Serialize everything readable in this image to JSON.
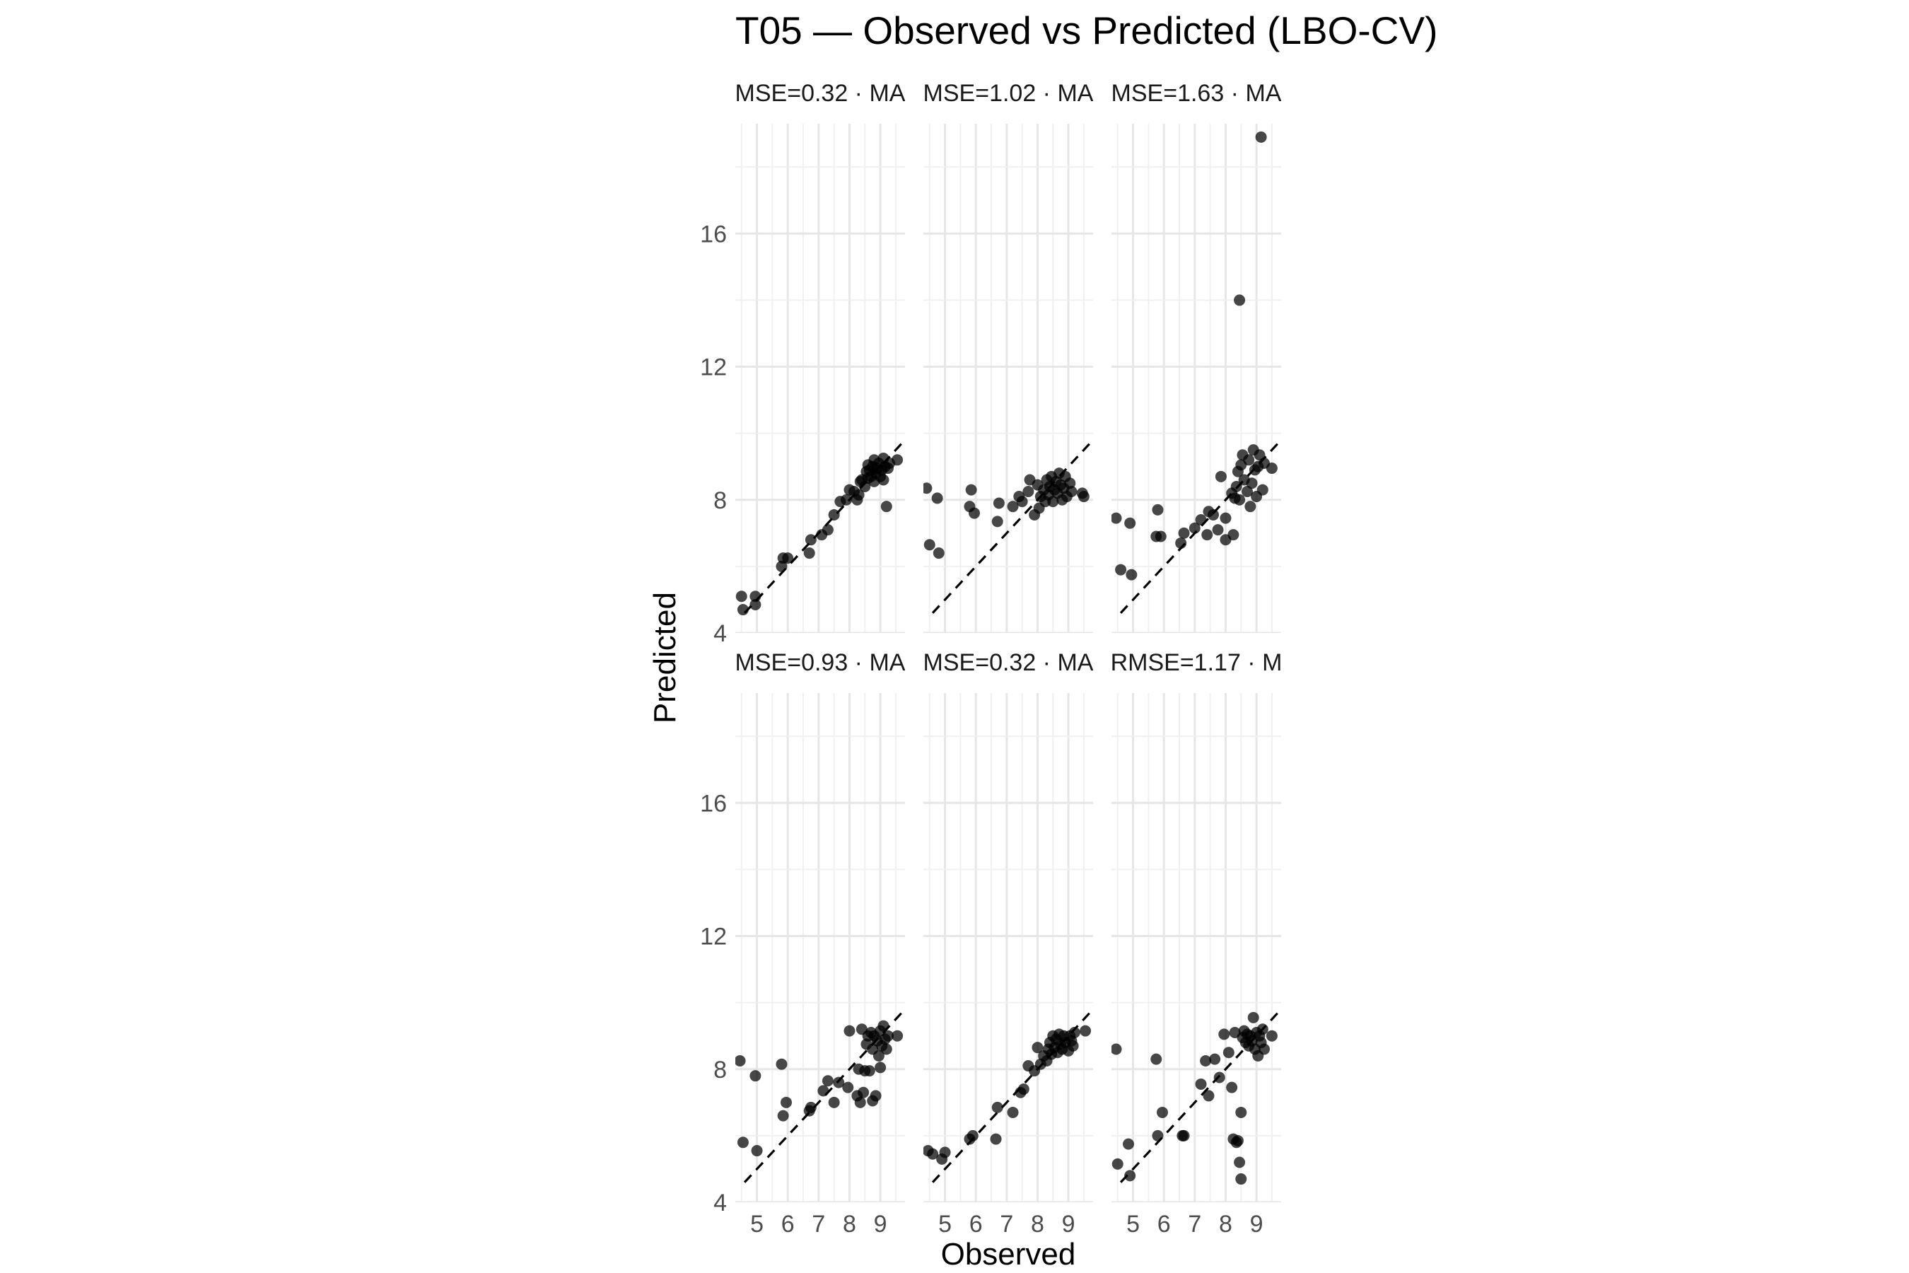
{
  "chart_data": {
    "type": "scatter",
    "title": "T05 — Observed vs Predicted (LBO-CV)",
    "xlabel": "Observed",
    "ylabel": "Predicted",
    "xlim": [
      4.3,
      9.8
    ],
    "ylim": [
      4,
      19.3
    ],
    "x_ticks": [
      "5",
      "6",
      "7",
      "8",
      "9"
    ],
    "y_ticks": [
      "4",
      "8",
      "12",
      "16"
    ],
    "grid": true,
    "reference_line": "y = x (dashed)",
    "panels": [
      {
        "label": "MSE=0.32 · MA",
        "points": [
          [
            4.5,
            5.1
          ],
          [
            4.55,
            4.7
          ],
          [
            4.95,
            4.85
          ],
          [
            4.95,
            5.1
          ],
          [
            5.8,
            6.0
          ],
          [
            5.85,
            6.25
          ],
          [
            6.0,
            6.25
          ],
          [
            6.7,
            6.4
          ],
          [
            6.75,
            6.8
          ],
          [
            7.1,
            6.95
          ],
          [
            7.3,
            7.1
          ],
          [
            7.5,
            7.55
          ],
          [
            7.7,
            7.95
          ],
          [
            7.9,
            8.0
          ],
          [
            8.0,
            8.3
          ],
          [
            8.15,
            8.25
          ],
          [
            8.25,
            8.0
          ],
          [
            8.3,
            8.15
          ],
          [
            8.35,
            8.55
          ],
          [
            8.4,
            8.6
          ],
          [
            8.5,
            8.4
          ],
          [
            8.55,
            8.85
          ],
          [
            8.6,
            8.65
          ],
          [
            8.6,
            9.05
          ],
          [
            8.65,
            8.9
          ],
          [
            8.7,
            8.7
          ],
          [
            8.75,
            9.0
          ],
          [
            8.8,
            8.55
          ],
          [
            8.8,
            9.2
          ],
          [
            8.85,
            8.8
          ],
          [
            8.9,
            8.95
          ],
          [
            8.95,
            9.1
          ],
          [
            9.0,
            8.7
          ],
          [
            9.05,
            8.9
          ],
          [
            9.1,
            9.25
          ],
          [
            9.1,
            8.6
          ],
          [
            9.15,
            9.0
          ],
          [
            9.2,
            7.8
          ],
          [
            9.25,
            8.95
          ],
          [
            9.3,
            9.1
          ],
          [
            9.55,
            9.2
          ]
        ]
      },
      {
        "label": "MSE=1.02 · MA",
        "points": [
          [
            4.4,
            8.35
          ],
          [
            4.5,
            6.65
          ],
          [
            4.75,
            8.05
          ],
          [
            4.8,
            6.4
          ],
          [
            5.8,
            7.8
          ],
          [
            5.85,
            8.3
          ],
          [
            5.95,
            7.6
          ],
          [
            6.7,
            7.35
          ],
          [
            6.75,
            7.9
          ],
          [
            7.2,
            7.8
          ],
          [
            7.4,
            8.1
          ],
          [
            7.5,
            7.95
          ],
          [
            7.7,
            8.25
          ],
          [
            7.75,
            8.6
          ],
          [
            7.9,
            7.55
          ],
          [
            8.0,
            8.45
          ],
          [
            8.05,
            7.75
          ],
          [
            8.1,
            8.1
          ],
          [
            8.2,
            8.3
          ],
          [
            8.25,
            7.95
          ],
          [
            8.3,
            8.6
          ],
          [
            8.35,
            8.15
          ],
          [
            8.4,
            8.4
          ],
          [
            8.45,
            8.7
          ],
          [
            8.5,
            7.95
          ],
          [
            8.55,
            8.3
          ],
          [
            8.6,
            8.55
          ],
          [
            8.65,
            8.2
          ],
          [
            8.7,
            8.8
          ],
          [
            8.75,
            8.45
          ],
          [
            8.8,
            8.0
          ],
          [
            8.85,
            8.35
          ],
          [
            8.9,
            8.7
          ],
          [
            8.95,
            8.1
          ],
          [
            9.05,
            8.5
          ],
          [
            9.1,
            8.25
          ],
          [
            9.45,
            8.2
          ],
          [
            9.5,
            8.1
          ]
        ]
      },
      {
        "label": "MSE=1.63 · MA",
        "points": [
          [
            4.45,
            7.45
          ],
          [
            4.6,
            5.9
          ],
          [
            4.9,
            7.3
          ],
          [
            4.95,
            5.75
          ],
          [
            5.75,
            6.9
          ],
          [
            5.8,
            7.7
          ],
          [
            5.9,
            6.9
          ],
          [
            6.55,
            6.7
          ],
          [
            6.65,
            7.0
          ],
          [
            7.0,
            7.15
          ],
          [
            7.2,
            7.4
          ],
          [
            7.4,
            6.95
          ],
          [
            7.45,
            7.65
          ],
          [
            7.6,
            7.55
          ],
          [
            7.75,
            7.1
          ],
          [
            7.85,
            8.7
          ],
          [
            8.0,
            6.8
          ],
          [
            8.0,
            7.45
          ],
          [
            8.2,
            8.2
          ],
          [
            8.25,
            6.95
          ],
          [
            8.3,
            8.05
          ],
          [
            8.35,
            8.4
          ],
          [
            8.4,
            8.85
          ],
          [
            8.45,
            8.0
          ],
          [
            8.45,
            14.0
          ],
          [
            8.5,
            9.05
          ],
          [
            8.55,
            9.35
          ],
          [
            8.6,
            8.6
          ],
          [
            8.7,
            8.25
          ],
          [
            8.75,
            9.2
          ],
          [
            8.8,
            7.8
          ],
          [
            8.85,
            8.5
          ],
          [
            8.9,
            9.5
          ],
          [
            8.95,
            8.9
          ],
          [
            9.0,
            8.1
          ],
          [
            9.05,
            9.0
          ],
          [
            9.1,
            9.35
          ],
          [
            9.15,
            18.9
          ],
          [
            9.2,
            8.3
          ],
          [
            9.25,
            9.1
          ],
          [
            9.5,
            8.95
          ]
        ]
      },
      {
        "label": "MSE=0.93 · MA",
        "points": [
          [
            4.45,
            8.25
          ],
          [
            4.55,
            5.8
          ],
          [
            4.95,
            7.8
          ],
          [
            5.0,
            5.55
          ],
          [
            5.8,
            8.15
          ],
          [
            5.85,
            6.6
          ],
          [
            5.95,
            7.0
          ],
          [
            6.7,
            6.75
          ],
          [
            6.75,
            6.85
          ],
          [
            7.15,
            7.35
          ],
          [
            7.3,
            7.65
          ],
          [
            7.5,
            7.0
          ],
          [
            7.65,
            7.6
          ],
          [
            7.95,
            7.45
          ],
          [
            8.0,
            9.15
          ],
          [
            8.25,
            7.2
          ],
          [
            8.3,
            8.0
          ],
          [
            8.35,
            7.0
          ],
          [
            8.4,
            9.2
          ],
          [
            8.45,
            7.3
          ],
          [
            8.5,
            7.95
          ],
          [
            8.55,
            8.75
          ],
          [
            8.6,
            9.0
          ],
          [
            8.65,
            7.95
          ],
          [
            8.7,
            9.1
          ],
          [
            8.75,
            7.05
          ],
          [
            8.75,
            8.6
          ],
          [
            8.8,
            9.0
          ],
          [
            8.85,
            7.2
          ],
          [
            8.9,
            8.85
          ],
          [
            8.95,
            8.4
          ],
          [
            9.0,
            9.15
          ],
          [
            9.0,
            8.05
          ],
          [
            9.05,
            8.7
          ],
          [
            9.1,
            9.3
          ],
          [
            9.15,
            8.9
          ],
          [
            9.2,
            8.6
          ],
          [
            9.25,
            9.0
          ],
          [
            9.55,
            9.0
          ]
        ]
      },
      {
        "label": "MSE=0.32 · MA",
        "points": [
          [
            4.45,
            5.55
          ],
          [
            4.6,
            5.45
          ],
          [
            4.9,
            5.3
          ],
          [
            5.0,
            5.5
          ],
          [
            5.8,
            5.9
          ],
          [
            5.9,
            6.0
          ],
          [
            6.65,
            5.9
          ],
          [
            6.7,
            6.85
          ],
          [
            7.2,
            6.7
          ],
          [
            7.45,
            7.3
          ],
          [
            7.55,
            7.4
          ],
          [
            7.7,
            8.1
          ],
          [
            7.9,
            7.95
          ],
          [
            8.0,
            8.65
          ],
          [
            8.1,
            8.15
          ],
          [
            8.2,
            8.4
          ],
          [
            8.3,
            8.25
          ],
          [
            8.35,
            8.6
          ],
          [
            8.4,
            8.8
          ],
          [
            8.45,
            8.45
          ],
          [
            8.5,
            9.0
          ],
          [
            8.55,
            8.65
          ],
          [
            8.6,
            8.9
          ],
          [
            8.65,
            8.5
          ],
          [
            8.7,
            9.05
          ],
          [
            8.75,
            8.75
          ],
          [
            8.8,
            8.6
          ],
          [
            8.85,
            9.0
          ],
          [
            8.9,
            8.8
          ],
          [
            9.0,
            8.55
          ],
          [
            9.05,
            9.0
          ],
          [
            9.1,
            8.85
          ],
          [
            9.15,
            8.7
          ],
          [
            9.2,
            9.1
          ],
          [
            9.55,
            9.15
          ]
        ]
      },
      {
        "label": "RMSE=1.17 · M",
        "points": [
          [
            4.45,
            8.6
          ],
          [
            4.5,
            5.15
          ],
          [
            4.85,
            5.75
          ],
          [
            4.9,
            4.8
          ],
          [
            5.75,
            8.3
          ],
          [
            5.8,
            6.0
          ],
          [
            5.95,
            6.7
          ],
          [
            6.6,
            6.0
          ],
          [
            6.65,
            6.0
          ],
          [
            7.2,
            7.55
          ],
          [
            7.35,
            8.25
          ],
          [
            7.45,
            7.2
          ],
          [
            7.65,
            8.3
          ],
          [
            7.8,
            7.75
          ],
          [
            7.95,
            9.05
          ],
          [
            8.1,
            8.5
          ],
          [
            8.2,
            7.45
          ],
          [
            8.25,
            5.9
          ],
          [
            8.3,
            9.1
          ],
          [
            8.35,
            5.8
          ],
          [
            8.4,
            5.85
          ],
          [
            8.45,
            5.2
          ],
          [
            8.5,
            4.7
          ],
          [
            8.5,
            6.7
          ],
          [
            8.55,
            8.95
          ],
          [
            8.6,
            9.15
          ],
          [
            8.65,
            8.8
          ],
          [
            8.7,
            9.05
          ],
          [
            8.75,
            8.7
          ],
          [
            8.8,
            9.0
          ],
          [
            8.85,
            8.85
          ],
          [
            8.9,
            9.55
          ],
          [
            8.95,
            8.6
          ],
          [
            9.0,
            9.1
          ],
          [
            9.05,
            8.4
          ],
          [
            9.1,
            9.0
          ],
          [
            9.15,
            8.8
          ],
          [
            9.2,
            9.2
          ],
          [
            9.25,
            8.6
          ],
          [
            9.5,
            9.0
          ]
        ]
      }
    ]
  }
}
